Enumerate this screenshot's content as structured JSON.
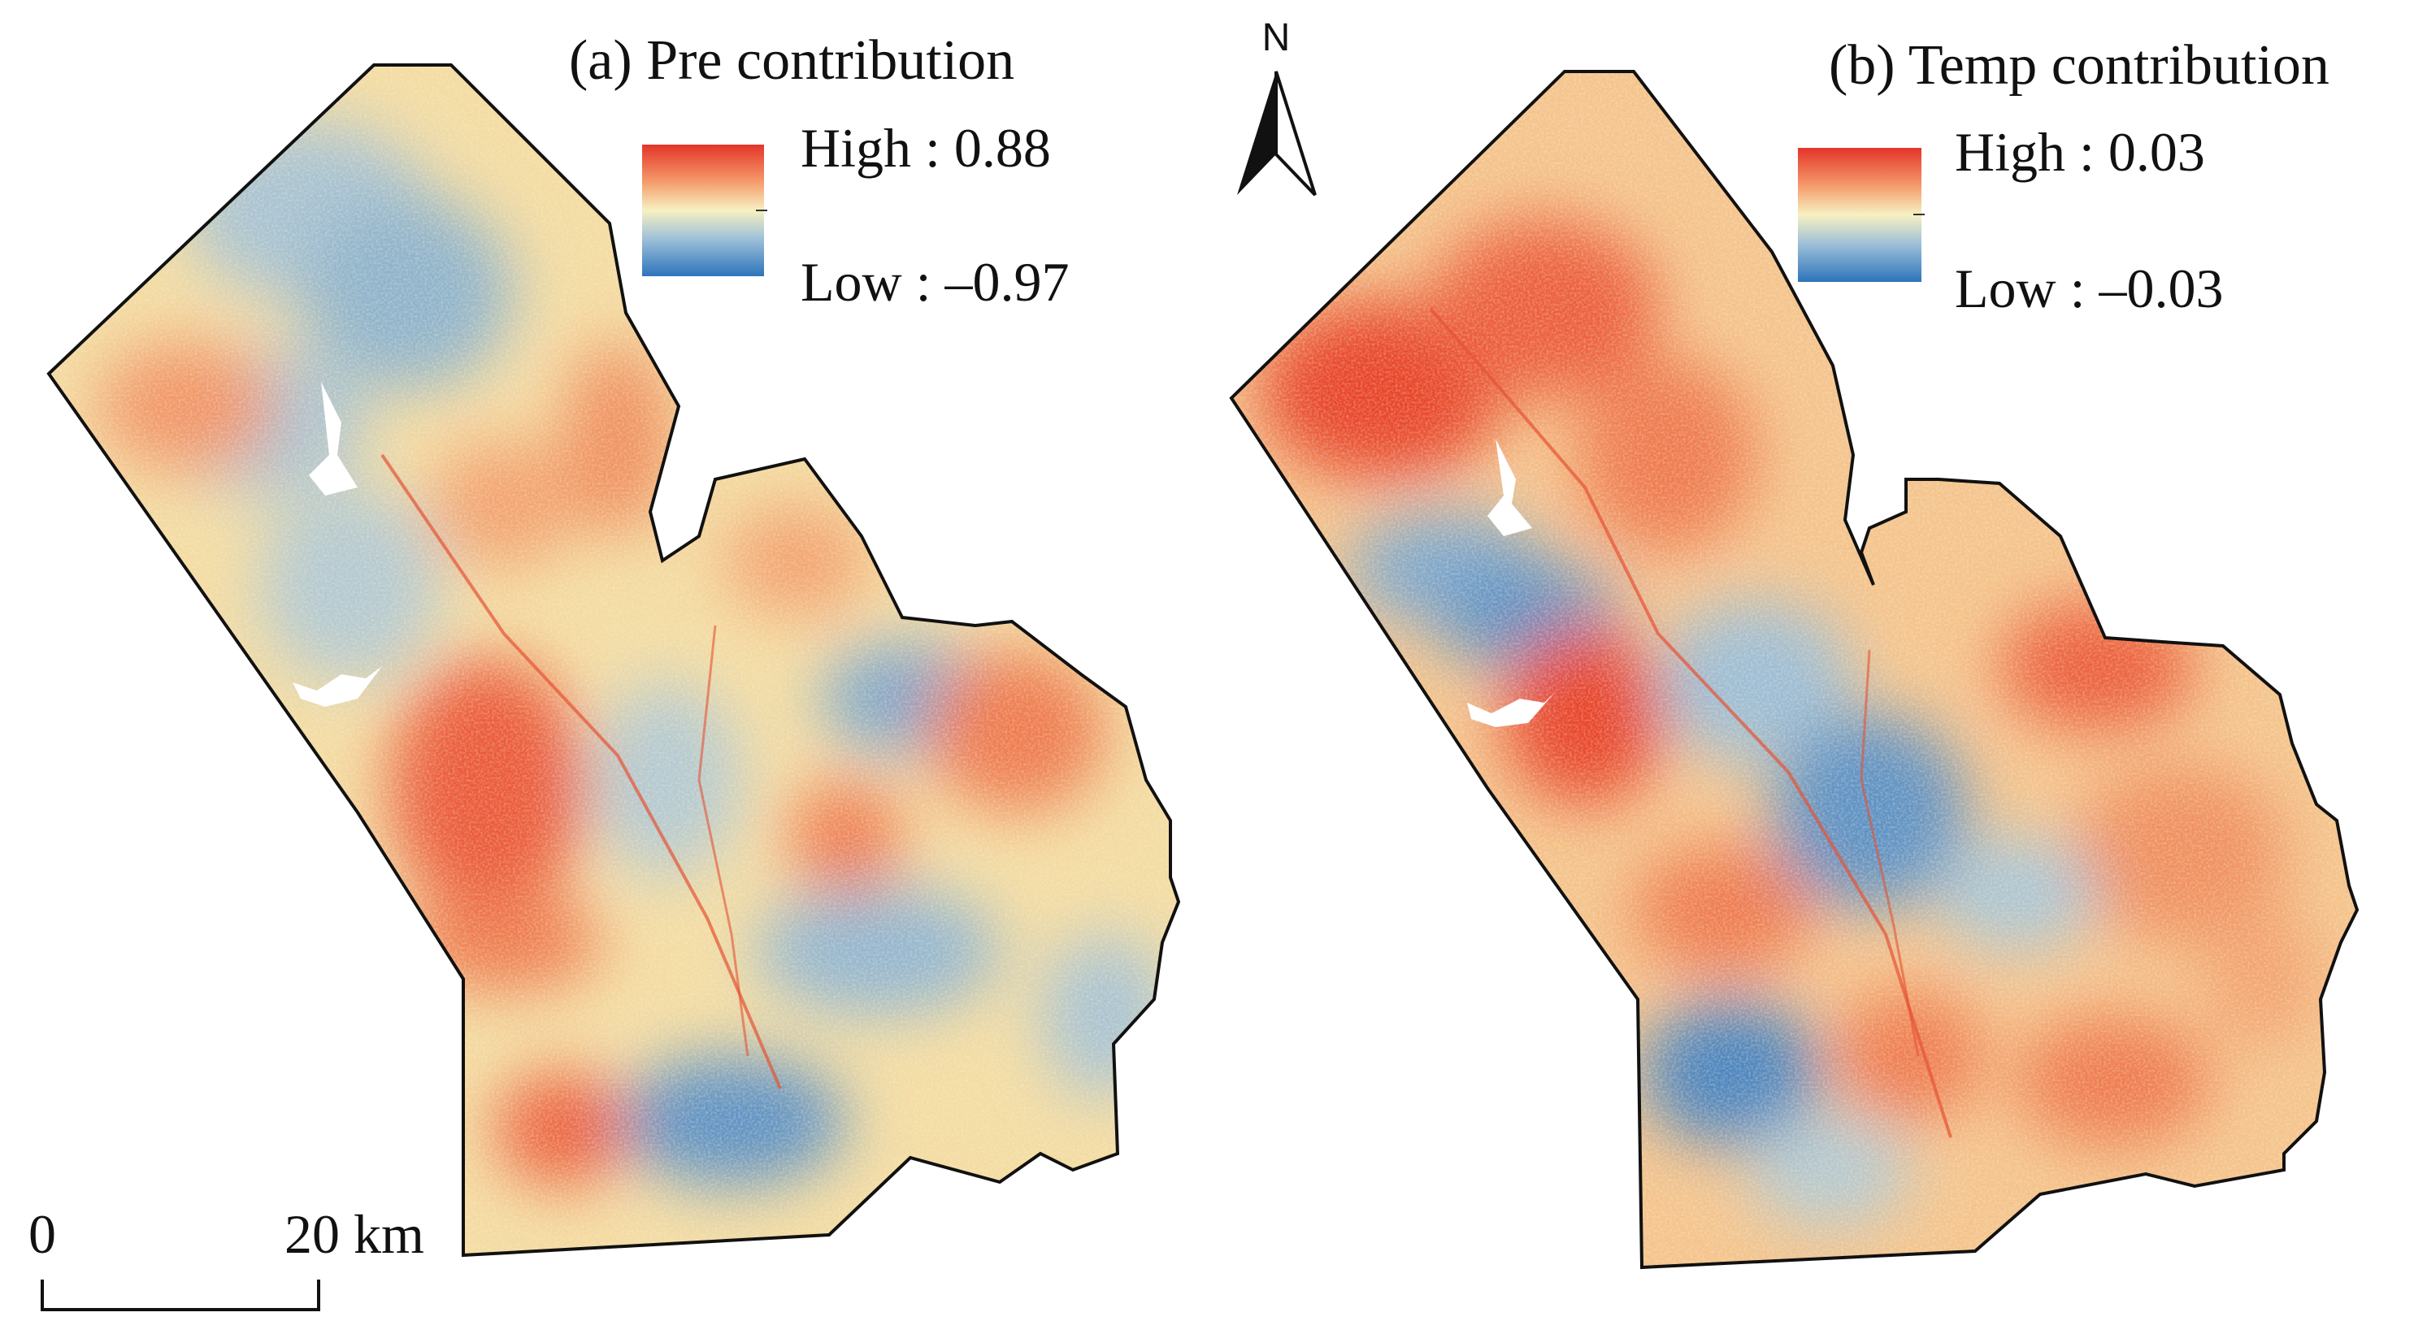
{
  "panels": [
    {
      "title": "(a) Pre contribution",
      "legend": {
        "high_label": "High : 0.88",
        "low_label": "Low : –0.97"
      }
    },
    {
      "title": "(b) Temp contribution",
      "legend": {
        "high_label": "High : 0.03",
        "low_label": "Low : –0.03"
      }
    }
  ],
  "north_arrow": {
    "label": "N"
  },
  "scale_bar": {
    "start_label": "0",
    "end_label": "20 km"
  },
  "colors": {
    "high": "#e8442c",
    "mid_high": "#f7b27a",
    "mid": "#f5efbf",
    "mid_low": "#a7c4d6",
    "low": "#2b6fb3",
    "outline": "#111111"
  }
}
